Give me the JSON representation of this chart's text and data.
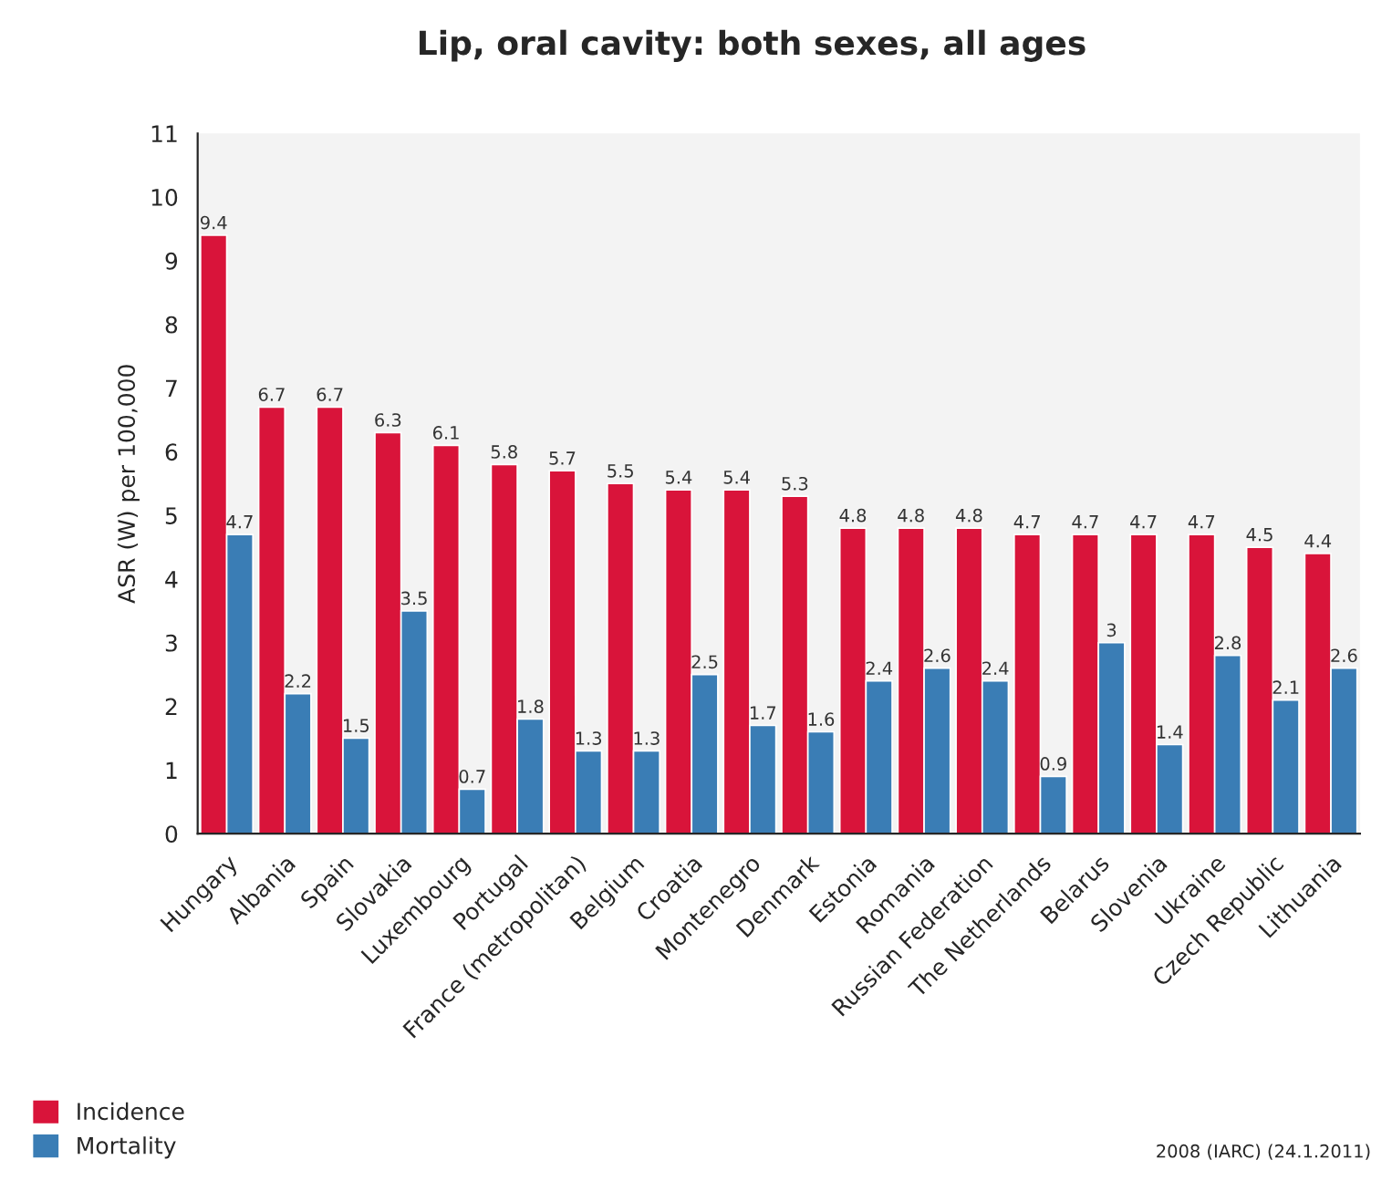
{
  "chart_data": {
    "type": "bar",
    "title": "Lip, oral cavity: both sexes, all ages",
    "ylabel": "ASR (W) per 100,000",
    "categories": [
      "Hungary",
      "Albania",
      "Spain",
      "Slovakia",
      "Luxembourg",
      "Portugal",
      "France (metropolitan)",
      "Belgium",
      "Croatia",
      "Montenegro",
      "Denmark",
      "Estonia",
      "Romania",
      "Russian Federation",
      "The Netherlands",
      "Belarus",
      "Slovenia",
      "Ukraine",
      "Czech Republic",
      "Lithuania"
    ],
    "series": [
      {
        "name": "Incidence",
        "color": "#d9143a",
        "values": [
          9.4,
          6.7,
          6.7,
          6.3,
          6.1,
          5.8,
          5.7,
          5.5,
          5.4,
          5.4,
          5.3,
          4.8,
          4.8,
          4.8,
          4.7,
          4.7,
          4.7,
          4.7,
          4.5,
          4.4
        ]
      },
      {
        "name": "Mortality",
        "color": "#3a7db5",
        "values": [
          4.7,
          2.2,
          1.5,
          3.5,
          0.7,
          1.8,
          1.3,
          1.3,
          2.5,
          1.7,
          1.6,
          2.4,
          2.6,
          2.4,
          0.9,
          3,
          1.4,
          2.8,
          2.1,
          2.6
        ]
      }
    ],
    "ylim": [
      0,
      11
    ],
    "yticks": [
      0,
      1,
      2,
      3,
      4,
      5,
      6,
      7,
      8,
      9,
      10,
      11
    ],
    "data_labels": true,
    "grid": false,
    "legend": "bottom left",
    "annotations": [
      "2008 (IARC) (24.1.2011)"
    ]
  }
}
